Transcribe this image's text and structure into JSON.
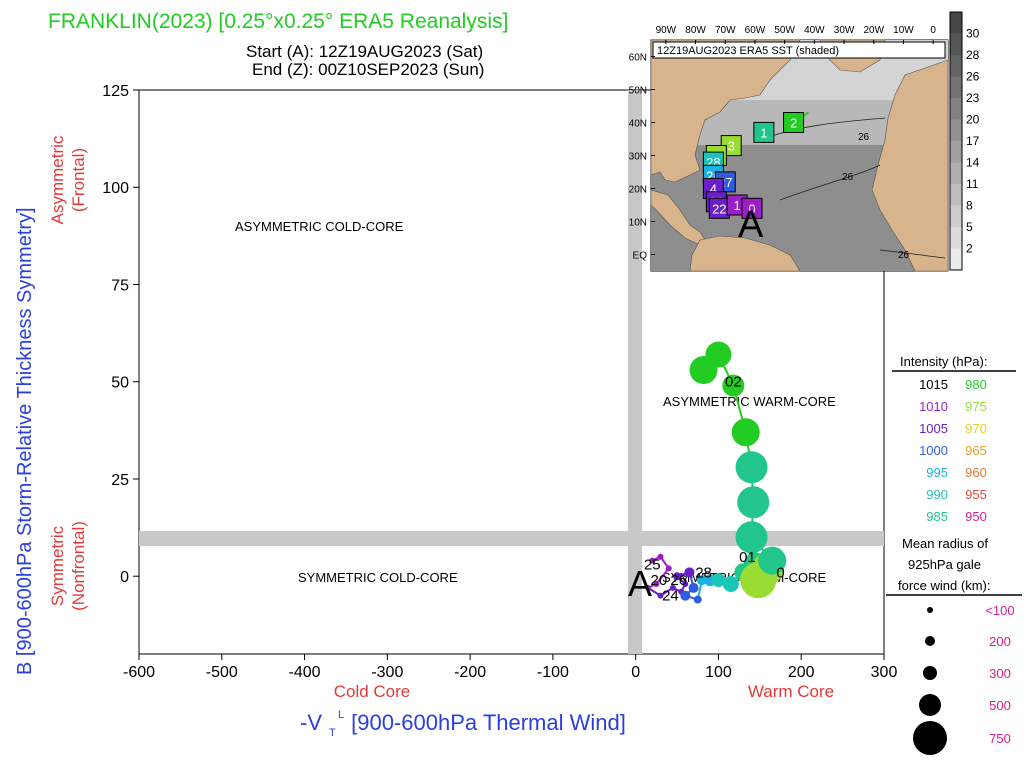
{
  "header": {
    "title": "FRANKLIN(2023) [0.25°x0.25° ERA5 Reanalysis]",
    "start": "Start (A): 12Z19AUG2023 (Sat)",
    "end": "End (Z): 00Z10SEP2023 (Sun)"
  },
  "colors": {
    "title": "#22cc22",
    "ylabel": "#2a3fe0",
    "xlabel": "#2a3fe0",
    "subaxis": "#e23a3a",
    "band": "#c8c8c8",
    "ocean_dark": "#8a8a8a",
    "land": "#d8b48c"
  },
  "axes": {
    "ylabel": "B [900-600hPa Storm-Relative Thickness Symmetry]",
    "xlabel_main": "-V",
    "xlabel_sub": "T",
    "xlabel_sup": "L",
    "xlabel_rest": " [900-600hPa Thermal Wind]",
    "y_upper": "Asymmetric",
    "y_upper2": "(Frontal)",
    "y_lower": "Symmetric",
    "y_lower2": "(Nonfrontal)",
    "x_left": "Cold Core",
    "x_right": "Warm Core"
  },
  "quadrants": {
    "asym_cold": "ASYMMETRIC COLD-CORE",
    "asym_warm": "ASYMMETRIC WARM-CORE",
    "sym_cold": "SYMMETRIC COLD-CORE",
    "sym_warm": "SYMMETRIC WARM-CORE"
  },
  "legend": {
    "intensity_title": "Intensity (hPa):",
    "intensity": [
      {
        "label": "1015",
        "color": "#000000"
      },
      {
        "label": "980",
        "color": "#22cc22"
      },
      {
        "label": "1010",
        "color": "#9b1fc9"
      },
      {
        "label": "975",
        "color": "#99dd33"
      },
      {
        "label": "1005",
        "color": "#6a1fc9"
      },
      {
        "label": "970",
        "color": "#e8d020"
      },
      {
        "label": "1000",
        "color": "#2f5ce0"
      },
      {
        "label": "965",
        "color": "#e8a020"
      },
      {
        "label": "995",
        "color": "#19b2e0"
      },
      {
        "label": "960",
        "color": "#e07a30"
      },
      {
        "label": "990",
        "color": "#19c6b8"
      },
      {
        "label": "955",
        "color": "#e04a3a"
      },
      {
        "label": "985",
        "color": "#22c68a"
      },
      {
        "label": "950",
        "color": "#d61f8f"
      }
    ],
    "radius_title1": "Mean radius of",
    "radius_title2": "925hPa gale",
    "radius_title3": "force wind (km):",
    "radii": [
      {
        "label": "<100",
        "r": 3
      },
      {
        "label": "200",
        "r": 5
      },
      {
        "label": "300",
        "r": 7
      },
      {
        "label": "500",
        "r": 11
      },
      {
        "label": "750",
        "r": 17
      }
    ]
  },
  "inset": {
    "title": "12Z19AUG2023 ERA5 SST (shaded)",
    "lon_labels": [
      "90W",
      "80W",
      "70W",
      "60W",
      "50W",
      "40W",
      "30W",
      "20W",
      "10W",
      "0"
    ],
    "lat_labels": [
      "60N",
      "50N",
      "40N",
      "30N",
      "20N",
      "10N",
      "EQ"
    ],
    "colorbar": [
      "30",
      "28",
      "26",
      "23",
      "20",
      "17",
      "14",
      "11",
      "8",
      "5",
      "2"
    ],
    "contour_labels": [
      "26",
      "26",
      "26"
    ],
    "start_marker": "A",
    "track_labels": [
      {
        "text": "2",
        "color": "#22cc22",
        "lon": -47,
        "lat": 40
      },
      {
        "text": "1",
        "color": "#22c68a",
        "lon": -57,
        "lat": 37
      },
      {
        "text": "3",
        "color": "#99dd33",
        "lon": -68,
        "lat": 33
      },
      {
        "text": "3",
        "color": "#99dd33",
        "lon": -73,
        "lat": 30
      },
      {
        "text": "28",
        "color": "#19c6b8",
        "lon": -74,
        "lat": 28
      },
      {
        "text": "26",
        "color": "#19b2e0",
        "lon": -74,
        "lat": 24
      },
      {
        "text": "27",
        "color": "#2f5ce0",
        "lon": -70,
        "lat": 22
      },
      {
        "text": "4",
        "color": "#6a1fc9",
        "lon": -74,
        "lat": 20
      },
      {
        "text": "23",
        "color": "#6a1fc9",
        "lon": -73,
        "lat": 16
      },
      {
        "text": "22",
        "color": "#6a1fc9",
        "lon": -72,
        "lat": 14
      },
      {
        "text": "1",
        "color": "#9b1fc9",
        "lon": -66,
        "lat": 15
      },
      {
        "text": "0",
        "color": "#9b1fc9",
        "lon": -61,
        "lat": 14
      }
    ]
  },
  "chart_data": {
    "type": "scatter",
    "xlim": [
      -600,
      300
    ],
    "ylim": [
      -20,
      125
    ],
    "xticks": [
      -600,
      -500,
      -400,
      -300,
      -200,
      -100,
      0,
      100,
      200,
      300
    ],
    "yticks": [
      0,
      25,
      50,
      75,
      100,
      125
    ],
    "grid": false,
    "legend_position": "right",
    "start_label": "A",
    "annotations": [
      {
        "text": "02",
        "x": 118,
        "y": 50
      },
      {
        "text": "01",
        "x": 135,
        "y": 5
      },
      {
        "text": "0",
        "x": 175,
        "y": 1
      },
      {
        "text": "28",
        "x": 82,
        "y": 1
      },
      {
        "text": "25",
        "x": 20,
        "y": 3
      },
      {
        "text": "20",
        "x": 28,
        "y": -1
      },
      {
        "text": "26",
        "x": 52,
        "y": -1
      },
      {
        "text": "24",
        "x": 42,
        "y": -5
      }
    ],
    "track": [
      {
        "x": 20,
        "y": 4,
        "size": 3,
        "color": "#9b1fc9"
      },
      {
        "x": 30,
        "y": 5,
        "size": 3,
        "color": "#9b1fc9"
      },
      {
        "x": 40,
        "y": 2,
        "size": 3,
        "color": "#9b1fc9"
      },
      {
        "x": 25,
        "y": -2,
        "size": 3,
        "color": "#9b1fc9"
      },
      {
        "x": 15,
        "y": -3,
        "size": 3,
        "color": "#9b1fc9"
      },
      {
        "x": 30,
        "y": -5,
        "size": 3,
        "color": "#6a1fc9"
      },
      {
        "x": 45,
        "y": -3,
        "size": 3,
        "color": "#6a1fc9"
      },
      {
        "x": 55,
        "y": -4,
        "size": 3,
        "color": "#6a1fc9"
      },
      {
        "x": 60,
        "y": -2,
        "size": 3,
        "color": "#6a1fc9"
      },
      {
        "x": 50,
        "y": 0,
        "size": 4,
        "color": "#6a1fc9"
      },
      {
        "x": 65,
        "y": 1,
        "size": 5,
        "color": "#6a1fc9"
      },
      {
        "x": 70,
        "y": -3,
        "size": 5,
        "color": "#2f5ce0"
      },
      {
        "x": 60,
        "y": -5,
        "size": 5,
        "color": "#2f5ce0"
      },
      {
        "x": 75,
        "y": -6,
        "size": 4,
        "color": "#2f5ce0"
      },
      {
        "x": 80,
        "y": -1,
        "size": 5,
        "color": "#19b2e0"
      },
      {
        "x": 90,
        "y": -1,
        "size": 6,
        "color": "#19b2e0"
      },
      {
        "x": 100,
        "y": -1,
        "size": 7,
        "color": "#19c6b8"
      },
      {
        "x": 115,
        "y": -2,
        "size": 8,
        "color": "#19c6b8"
      },
      {
        "x": 130,
        "y": 1,
        "size": 9,
        "color": "#22c68a"
      },
      {
        "x": 145,
        "y": 3,
        "size": 12,
        "color": "#22c68a"
      },
      {
        "x": 150,
        "y": 0,
        "size": 15,
        "color": "#22c68a"
      },
      {
        "x": 160,
        "y": 2,
        "size": 16,
        "color": "#99dd33"
      },
      {
        "x": 148,
        "y": -1,
        "size": 18,
        "color": "#99dd33"
      },
      {
        "x": 165,
        "y": 4,
        "size": 14,
        "color": "#22c68a"
      },
      {
        "x": 140,
        "y": 10,
        "size": 16,
        "color": "#22c68a"
      },
      {
        "x": 142,
        "y": 19,
        "size": 16,
        "color": "#22c68a"
      },
      {
        "x": 140,
        "y": 28,
        "size": 16,
        "color": "#22c68a"
      },
      {
        "x": 133,
        "y": 37,
        "size": 14,
        "color": "#22cc22"
      },
      {
        "x": 118,
        "y": 49,
        "size": 11,
        "color": "#22cc22"
      },
      {
        "x": 100,
        "y": 57,
        "size": 13,
        "color": "#22cc22"
      },
      {
        "x": 82,
        "y": 53,
        "size": 14,
        "color": "#22cc22"
      }
    ]
  }
}
